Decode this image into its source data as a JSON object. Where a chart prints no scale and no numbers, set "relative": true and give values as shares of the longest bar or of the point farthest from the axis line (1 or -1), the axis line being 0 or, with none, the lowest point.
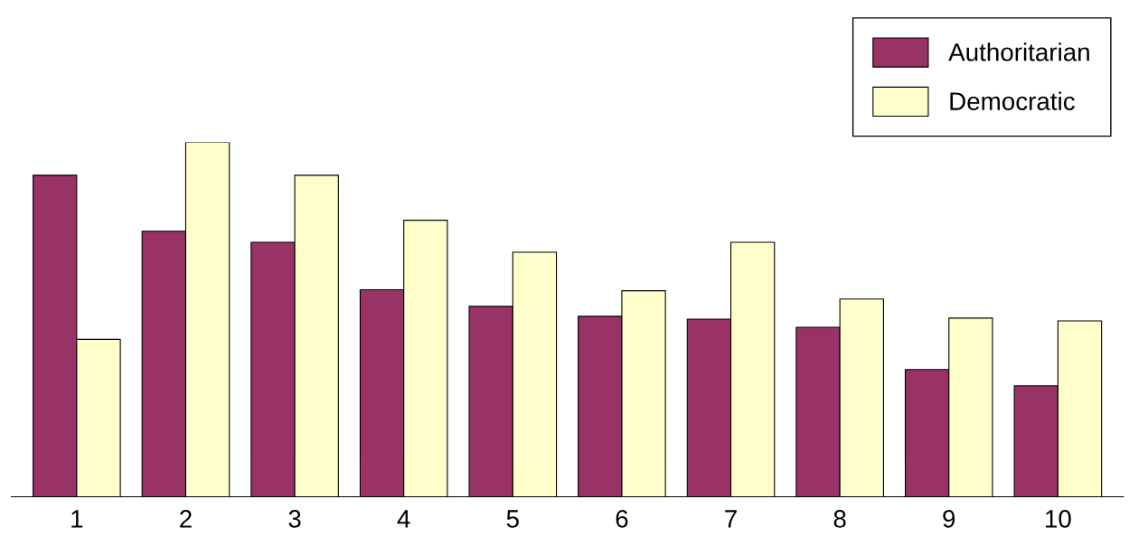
{
  "chart_data": {
    "type": "bar",
    "relative": true,
    "categories": [
      "1",
      "2",
      "3",
      "4",
      "5",
      "6",
      "7",
      "8",
      "9",
      "10"
    ],
    "series": [
      {
        "name": "Authoritarian",
        "color": "#993366",
        "values": [
          0.907,
          0.749,
          0.718,
          0.584,
          0.537,
          0.509,
          0.501,
          0.478,
          0.359,
          0.313
        ]
      },
      {
        "name": "Democratic",
        "color": "#ffffcc",
        "values": [
          0.444,
          1,
          0.907,
          0.78,
          0.69,
          0.581,
          0.718,
          0.558,
          0.504,
          0.496
        ]
      }
    ],
    "legend": "top right",
    "grid": false
  }
}
